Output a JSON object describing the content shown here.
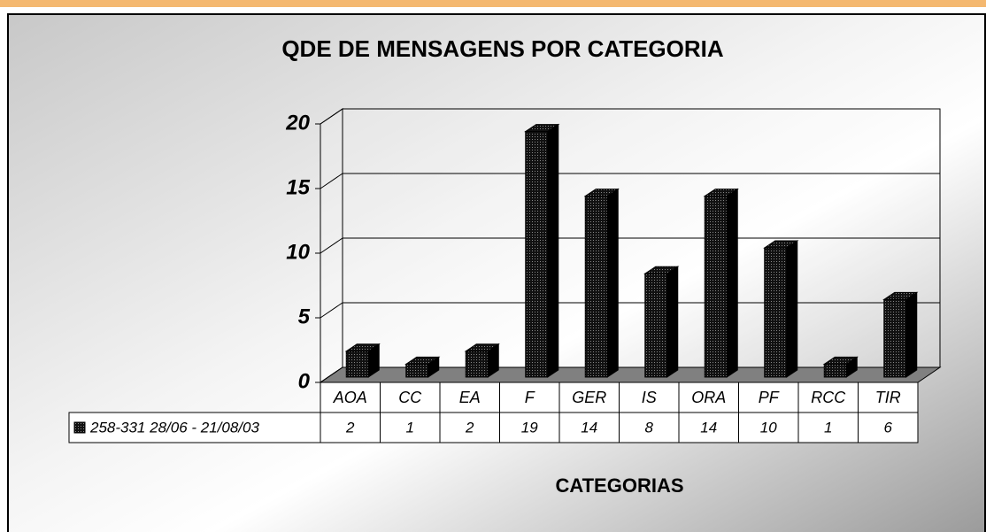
{
  "chart_data": {
    "type": "bar3d",
    "title": "QDE DE MENSAGENS POR CATEGORIA",
    "x_label": "CATEGORIAS",
    "categories": [
      "AOA",
      "CC",
      "EA",
      "F",
      "GER",
      "IS",
      "ORA",
      "PF",
      "RCC",
      "TIR"
    ],
    "series": [
      {
        "name": "258-331 28/06 - 21/08/03",
        "color": "#111111",
        "values": [
          2,
          1,
          2,
          19,
          14,
          8,
          14,
          10,
          1,
          6
        ]
      }
    ],
    "ylim": [
      0,
      20
    ],
    "yticks": [
      0,
      5,
      10,
      15,
      20
    ],
    "grid": true,
    "data_table": true
  }
}
